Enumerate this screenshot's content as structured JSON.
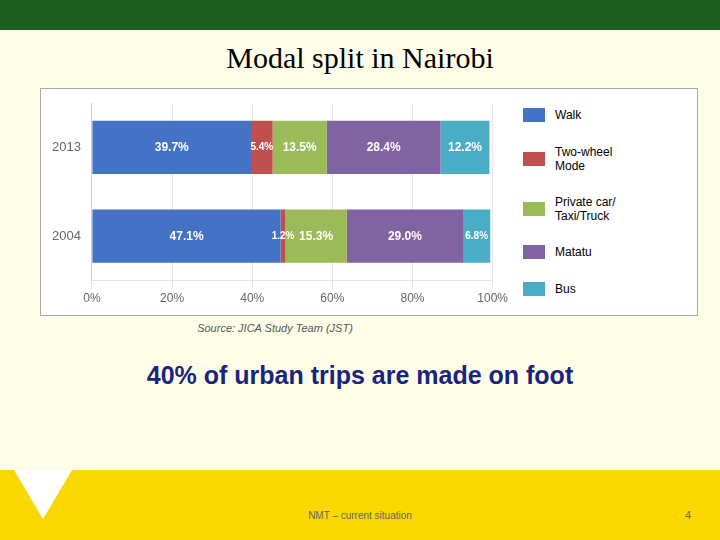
{
  "chart_data": {
    "type": "bar",
    "title": "Modal split in Nairobi",
    "subtitle": "40% of urban trips are made on foot",
    "annotations": [
      "Source: JICA Study Team (JST)",
      "NMT – current situation",
      "4"
    ],
    "orientation": "horizontal",
    "stacked": true,
    "categories": [
      "2013",
      "2004"
    ],
    "series": [
      {
        "name": "Walk",
        "color": "#4472C4",
        "values": [
          39.7,
          47.1
        ],
        "value_labels": [
          "39.7%",
          "47.1%"
        ]
      },
      {
        "name": "Two-wheel\nMode",
        "color": "#C0504D",
        "values": [
          5.4,
          1.2
        ],
        "value_labels": [
          "5.4%",
          "1.2%"
        ]
      },
      {
        "name": "Private car/\nTaxi/Truck",
        "color": "#9BBB59",
        "values": [
          13.5,
          15.3
        ],
        "value_labels": [
          "13.5%",
          "15.3%"
        ]
      },
      {
        "name": "Matatu",
        "color": "#8064A2",
        "values": [
          28.4,
          29.0
        ],
        "value_labels": [
          "28.4%",
          "29.0%"
        ]
      },
      {
        "name": "Bus",
        "color": "#4BACC6",
        "values": [
          12.2,
          6.8
        ],
        "value_labels": [
          "12.2%",
          "6.8%"
        ]
      }
    ],
    "xlim": [
      0,
      100
    ],
    "xticks": [
      {
        "value": 0,
        "label": "0%"
      },
      {
        "value": 20,
        "label": "20%"
      },
      {
        "value": 40,
        "label": "40%"
      },
      {
        "value": 60,
        "label": "60%"
      },
      {
        "value": 80,
        "label": "80%"
      },
      {
        "value": 100,
        "label": "100%"
      }
    ],
    "grid": true,
    "legend": "right",
    "data_labels": true
  }
}
